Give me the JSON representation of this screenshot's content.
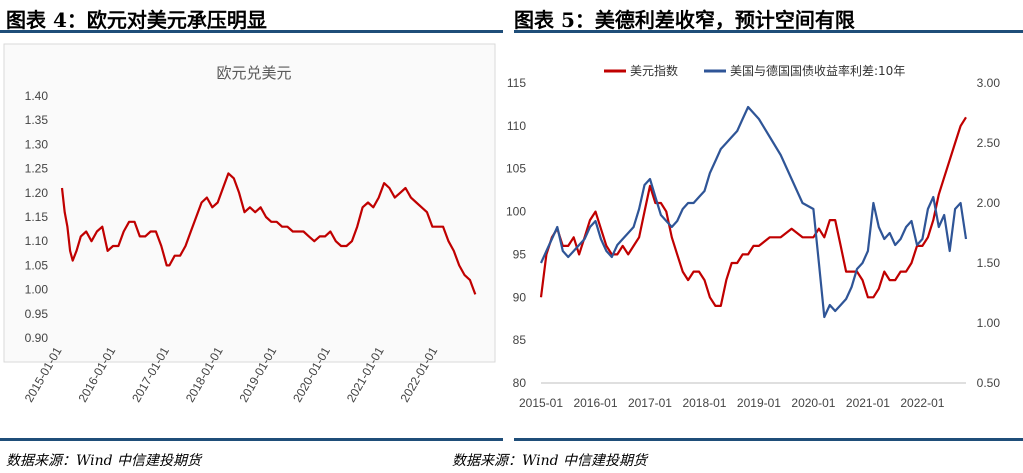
{
  "figure4": {
    "title": "图表 4：欧元对美元承压明显",
    "source": "数据来源：Wind  中信建投期货"
  },
  "figure5": {
    "title": "图表 5：美德利差收窄，预计空间有限",
    "source": "数据来源：Wind  中信建投期货"
  },
  "colors": {
    "red": "#c00000",
    "blue": "#2f5597",
    "rule": "#1f4e79"
  },
  "chart_data": [
    {
      "type": "line",
      "title": "欧元兑美元",
      "y_ticks": [
        "0.90",
        "0.95",
        "1.00",
        "1.05",
        "1.10",
        "1.15",
        "1.20",
        "1.25",
        "1.30",
        "1.35",
        "1.40"
      ],
      "ylim": [
        0.9,
        1.4
      ],
      "x_ticks": [
        "2015-01-01",
        "2016-01-01",
        "2017-01-01",
        "2018-01-01",
        "2019-01-01",
        "2020-01-01",
        "2021-01-01",
        "2022-01-01"
      ],
      "xlim": [
        2015.0,
        2022.75
      ],
      "series": [
        {
          "name": "欧元兑美元",
          "color": "#c00000",
          "x": [
            2015.0,
            2015.05,
            2015.1,
            2015.15,
            2015.2,
            2015.27,
            2015.35,
            2015.45,
            2015.55,
            2015.65,
            2015.75,
            2015.85,
            2015.95,
            2016.05,
            2016.15,
            2016.25,
            2016.35,
            2016.45,
            2016.55,
            2016.65,
            2016.75,
            2016.85,
            2016.95,
            2017.0,
            2017.1,
            2017.2,
            2017.3,
            2017.4,
            2017.5,
            2017.6,
            2017.7,
            2017.8,
            2017.9,
            2018.0,
            2018.1,
            2018.2,
            2018.3,
            2018.4,
            2018.5,
            2018.6,
            2018.7,
            2018.8,
            2018.9,
            2019.0,
            2019.1,
            2019.2,
            2019.3,
            2019.4,
            2019.5,
            2019.6,
            2019.7,
            2019.8,
            2019.9,
            2020.0,
            2020.1,
            2020.2,
            2020.3,
            2020.4,
            2020.5,
            2020.6,
            2020.7,
            2020.8,
            2020.9,
            2021.0,
            2021.1,
            2021.2,
            2021.3,
            2021.4,
            2021.5,
            2021.6,
            2021.7,
            2021.8,
            2021.9,
            2022.0,
            2022.1,
            2022.2,
            2022.3,
            2022.4,
            2022.5,
            2022.6,
            2022.7
          ],
          "y": [
            1.21,
            1.16,
            1.13,
            1.08,
            1.06,
            1.08,
            1.11,
            1.12,
            1.1,
            1.12,
            1.13,
            1.08,
            1.09,
            1.09,
            1.12,
            1.14,
            1.14,
            1.11,
            1.11,
            1.12,
            1.12,
            1.09,
            1.05,
            1.05,
            1.07,
            1.07,
            1.09,
            1.12,
            1.15,
            1.18,
            1.19,
            1.17,
            1.18,
            1.21,
            1.24,
            1.23,
            1.2,
            1.16,
            1.17,
            1.16,
            1.17,
            1.15,
            1.14,
            1.14,
            1.13,
            1.13,
            1.12,
            1.12,
            1.12,
            1.11,
            1.1,
            1.11,
            1.11,
            1.12,
            1.1,
            1.09,
            1.09,
            1.1,
            1.13,
            1.17,
            1.18,
            1.17,
            1.19,
            1.22,
            1.21,
            1.19,
            1.2,
            1.21,
            1.19,
            1.18,
            1.17,
            1.16,
            1.13,
            1.13,
            1.13,
            1.1,
            1.08,
            1.05,
            1.03,
            1.02,
            0.99
          ]
        }
      ]
    },
    {
      "type": "line",
      "y_left_ticks": [
        "80",
        "85",
        "90",
        "95",
        "100",
        "105",
        "110",
        "115"
      ],
      "ylim_left": [
        80,
        115
      ],
      "y_right_ticks": [
        "0.50",
        "1.00",
        "1.50",
        "2.00",
        "2.50",
        "3.00"
      ],
      "ylim_right": [
        0.5,
        3.0
      ],
      "x_ticks": [
        "2015-01",
        "2016-01",
        "2017-01",
        "2018-01",
        "2019-01",
        "2020-01",
        "2021-01",
        "2022-01"
      ],
      "xlim": [
        2015.0,
        2022.8
      ],
      "legend_position": "top",
      "series": [
        {
          "name": "美元指数",
          "color": "#c00000",
          "axis": "left",
          "x": [
            2015.0,
            2015.1,
            2015.2,
            2015.3,
            2015.4,
            2015.5,
            2015.6,
            2015.7,
            2015.8,
            2015.9,
            2016.0,
            2016.1,
            2016.2,
            2016.3,
            2016.4,
            2016.5,
            2016.6,
            2016.7,
            2016.8,
            2016.9,
            2017.0,
            2017.1,
            2017.2,
            2017.3,
            2017.4,
            2017.5,
            2017.6,
            2017.7,
            2017.8,
            2017.9,
            2018.0,
            2018.1,
            2018.2,
            2018.3,
            2018.4,
            2018.5,
            2018.6,
            2018.7,
            2018.8,
            2018.9,
            2019.0,
            2019.2,
            2019.4,
            2019.6,
            2019.8,
            2020.0,
            2020.1,
            2020.2,
            2020.3,
            2020.4,
            2020.5,
            2020.6,
            2020.7,
            2020.8,
            2020.9,
            2021.0,
            2021.1,
            2021.2,
            2021.3,
            2021.4,
            2021.5,
            2021.6,
            2021.7,
            2021.8,
            2021.9,
            2022.0,
            2022.1,
            2022.2,
            2022.3,
            2022.4,
            2022.5,
            2022.6,
            2022.7,
            2022.8
          ],
          "y": [
            90,
            95,
            97,
            98,
            96,
            96,
            97,
            95,
            97,
            99,
            100,
            98,
            96,
            95,
            95,
            96,
            95,
            96,
            97,
            100,
            103,
            101,
            101,
            100,
            97,
            95,
            93,
            92,
            93,
            93,
            92,
            90,
            89,
            89,
            92,
            94,
            94,
            95,
            95,
            96,
            96,
            97,
            97,
            98,
            97,
            97,
            98,
            97,
            99,
            99,
            96,
            93,
            93,
            93,
            92,
            90,
            90,
            91,
            93,
            92,
            92,
            93,
            93,
            94,
            96,
            96,
            97,
            99,
            102,
            104,
            106,
            108,
            110,
            111
          ]
        },
        {
          "name": "美国与德国国债收益率利差:10年",
          "color": "#2f5597",
          "axis": "right",
          "x": [
            2015.0,
            2015.1,
            2015.2,
            2015.3,
            2015.4,
            2015.5,
            2015.6,
            2015.7,
            2015.8,
            2015.9,
            2016.0,
            2016.1,
            2016.2,
            2016.3,
            2016.4,
            2016.5,
            2016.6,
            2016.7,
            2016.8,
            2016.9,
            2017.0,
            2017.1,
            2017.2,
            2017.3,
            2017.4,
            2017.5,
            2017.6,
            2017.7,
            2017.8,
            2017.9,
            2018.0,
            2018.1,
            2018.2,
            2018.3,
            2018.4,
            2018.5,
            2018.6,
            2018.7,
            2018.8,
            2018.9,
            2019.0,
            2019.2,
            2019.4,
            2019.6,
            2019.8,
            2020.0,
            2020.1,
            2020.2,
            2020.3,
            2020.4,
            2020.5,
            2020.6,
            2020.7,
            2020.8,
            2020.9,
            2021.0,
            2021.1,
            2021.2,
            2021.3,
            2021.4,
            2021.5,
            2021.6,
            2021.7,
            2021.8,
            2021.9,
            2022.0,
            2022.1,
            2022.2,
            2022.3,
            2022.4,
            2022.5,
            2022.6,
            2022.7,
            2022.8
          ],
          "y": [
            1.5,
            1.6,
            1.7,
            1.8,
            1.6,
            1.55,
            1.6,
            1.65,
            1.7,
            1.8,
            1.85,
            1.7,
            1.6,
            1.55,
            1.65,
            1.7,
            1.75,
            1.8,
            1.95,
            2.15,
            2.2,
            2.05,
            1.9,
            1.85,
            1.8,
            1.85,
            1.95,
            2.0,
            2.0,
            2.05,
            2.1,
            2.25,
            2.35,
            2.45,
            2.5,
            2.55,
            2.6,
            2.7,
            2.8,
            2.75,
            2.7,
            2.55,
            2.4,
            2.2,
            2.0,
            1.95,
            1.5,
            1.05,
            1.15,
            1.1,
            1.15,
            1.2,
            1.3,
            1.45,
            1.5,
            1.6,
            2.0,
            1.8,
            1.7,
            1.75,
            1.65,
            1.7,
            1.8,
            1.85,
            1.65,
            1.7,
            1.95,
            2.05,
            1.8,
            1.9,
            1.6,
            1.95,
            2.0,
            1.7
          ]
        }
      ]
    }
  ]
}
